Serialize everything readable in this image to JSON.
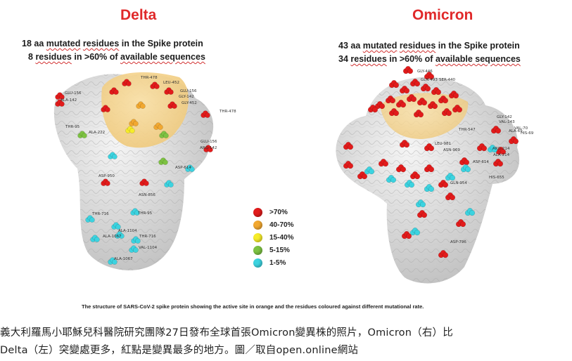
{
  "delta": {
    "title": "Delta",
    "stat_line1": {
      "count": "18 aa",
      "mid": "mutated",
      "mid2": "residues",
      "rest": "in the Spike protein"
    },
    "stat_line2": {
      "count": "8",
      "word1": "residues",
      "mid": "in >60% of",
      "word2": "available sequences"
    },
    "labels": [
      "GLU-156",
      "ALA-142",
      "THR-478",
      "LEU-452",
      "GLU-156",
      "GLY-142",
      "GLY-452",
      "THR-478",
      "THR-95",
      "ALA-222",
      "GLU-156",
      "ARG-142",
      "ASP-950",
      "ASP-614",
      "ASN-856",
      "THR-95",
      "THR-716",
      "ALA-1104",
      "THR-716",
      "VAL-1104",
      "ALA-1067",
      "ALA-1067"
    ]
  },
  "omicron": {
    "title": "Omicron",
    "stat_line1": {
      "count": "43 aa",
      "mid": "mutated",
      "mid2": "residues",
      "rest": "in the Spike protein"
    },
    "stat_line2": {
      "count": "34",
      "word1": "residues",
      "mid": "in >60% of",
      "word2": "available sequences"
    },
    "labels": [
      "GLY-446",
      "GLN-493",
      "SER-440",
      "THR-547",
      "GLY-142",
      "VAL-143",
      "VAL-70",
      "ALA-69",
      "HIS-69",
      "LEU-981",
      "ASN-969",
      "ARG-214",
      "ALA-214",
      "ASP-614",
      "GLN-954",
      "HIS-655",
      "ASP-796"
    ]
  },
  "legend": [
    {
      "label": ">70%",
      "color": "#e21b1b"
    },
    {
      "label": "40-70%",
      "color": "#f2a830"
    },
    {
      "label": "15-40%",
      "color": "#f6ec2a"
    },
    {
      "label": "5-15%",
      "color": "#7dc242"
    },
    {
      "label": "1-5%",
      "color": "#3cd3e0"
    }
  ],
  "footnote": "The structure of SARS-CoV-2 spike protein showing the active site in orange and the residues coloured against different mutational rate.",
  "caption": {
    "line1": "義大利羅馬小耶穌兒科醫院研究團隊27日發布全球首張Omicron變異株的照片，Omicron（右）比",
    "line2": "Delta（左）突變處更多，紅點是變異最多的地方。圖／取自open.online網站"
  }
}
